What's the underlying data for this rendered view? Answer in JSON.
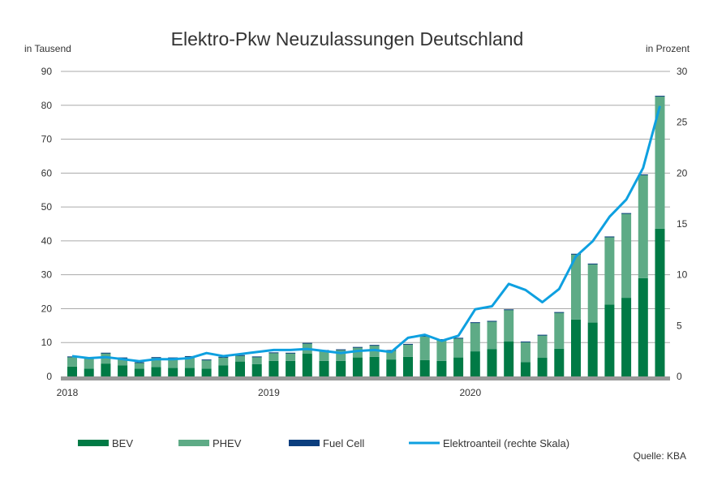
{
  "chart_data": {
    "type": "bar",
    "title": "Elektro-Pkw Neuzulassungen Deutschland",
    "ylabel": "in Tausend",
    "y2label": "in Prozent",
    "ylim": [
      0,
      90
    ],
    "y2lim": [
      0,
      30
    ],
    "yticks": [
      "0",
      "10",
      "20",
      "30",
      "40",
      "50",
      "60",
      "70",
      "80",
      "90"
    ],
    "y2ticks": [
      "0",
      "5",
      "10",
      "15",
      "20",
      "25",
      "30"
    ],
    "xtick_labels": [
      {
        "label": "2018",
        "index": 0
      },
      {
        "label": "2019",
        "index": 12
      },
      {
        "label": "2020",
        "index": 24
      }
    ],
    "categories": [
      "2018-01",
      "2018-02",
      "2018-03",
      "2018-04",
      "2018-05",
      "2018-06",
      "2018-07",
      "2018-08",
      "2018-09",
      "2018-10",
      "2018-11",
      "2018-12",
      "2019-01",
      "2019-02",
      "2019-03",
      "2019-04",
      "2019-05",
      "2019-06",
      "2019-07",
      "2019-08",
      "2019-09",
      "2019-10",
      "2019-11",
      "2019-12",
      "2020-01",
      "2020-02",
      "2020-03",
      "2020-04",
      "2020-05",
      "2020-06",
      "2020-07",
      "2020-08",
      "2020-09",
      "2020-10",
      "2020-11",
      "2020-12"
    ],
    "series": [
      {
        "name": "BEV",
        "color": "#007a45",
        "values": [
          2.9,
          2.3,
          3.8,
          3.3,
          2.3,
          2.8,
          2.5,
          2.5,
          2.3,
          3.3,
          4.4,
          3.6,
          4.6,
          4.6,
          6.7,
          4.6,
          4.6,
          5.6,
          5.8,
          5.0,
          5.8,
          4.8,
          4.6,
          5.6,
          7.4,
          8.1,
          10.3,
          4.2,
          5.5,
          8.2,
          16.8,
          15.9,
          21.2,
          23.2,
          29.0,
          43.6
        ]
      },
      {
        "name": "PHEV",
        "color": "#5eab86",
        "values": [
          2.9,
          3.1,
          3.1,
          2.2,
          1.8,
          2.8,
          3.0,
          3.4,
          2.6,
          2.4,
          1.8,
          2.2,
          2.4,
          2.3,
          3.1,
          3.1,
          3.3,
          3.0,
          3.4,
          2.7,
          3.7,
          7.1,
          6.3,
          5.7,
          8.5,
          8.2,
          9.4,
          6.0,
          6.7,
          10.7,
          19.3,
          17.3,
          20.0,
          24.9,
          30.5,
          39.1
        ]
      },
      {
        "name": "Fuel Cell",
        "color": "#0b3e7e",
        "values": [
          0.1,
          0.1,
          0.1,
          0.1,
          0.1,
          0.1,
          0.1,
          0.1,
          0.1,
          0.1,
          0.1,
          0.1,
          0.1,
          0.1,
          0.1,
          0.1,
          0.1,
          0.1,
          0.1,
          0.1,
          0.1,
          0.1,
          0.1,
          0.1,
          0.1,
          0.1,
          0.1,
          0.1,
          0.1,
          0.1,
          0.1,
          0.1,
          0.1,
          0.1,
          0.1,
          0.1
        ]
      },
      {
        "name": "Elektroanteil (rechte Skala)",
        "color": "#0ea0e0",
        "type": "line",
        "axis": "right",
        "values": [
          2.0,
          1.8,
          1.9,
          1.7,
          1.5,
          1.7,
          1.7,
          1.8,
          2.3,
          2.0,
          2.2,
          2.4,
          2.6,
          2.6,
          2.7,
          2.5,
          2.3,
          2.5,
          2.6,
          2.4,
          3.8,
          4.1,
          3.5,
          4.0,
          6.6,
          6.9,
          9.1,
          8.5,
          7.3,
          8.6,
          11.8,
          13.3,
          15.7,
          17.4,
          20.5,
          26.6
        ]
      }
    ],
    "grid": true,
    "legend": "bottom"
  },
  "source": "Quelle: KBA"
}
